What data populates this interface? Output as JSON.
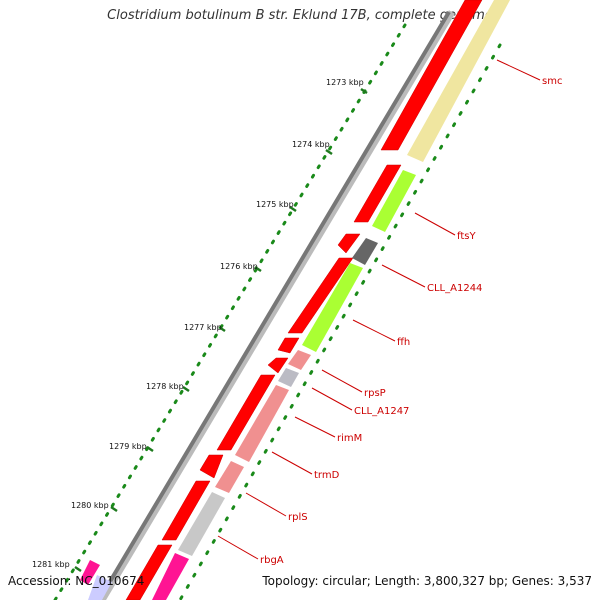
{
  "title": "Clostridium botulinum B str. Eklund 17B, complete genome",
  "footer": {
    "accession": "Accession: NC_010674",
    "summary": "Topology: circular; Length: 3,800,327 bp; Genes: 3,537"
  },
  "colors": {
    "backbone": "#777777",
    "cds": "#ff0000",
    "tick_dot": "#1a8a1a",
    "tick_mark": "#1f7a1f",
    "label": "#cc0000"
  },
  "ticks": [
    "1273 kbp",
    "1274 kbp",
    "1275 kbp",
    "1276 kbp",
    "1277 kbp",
    "1278 kbp",
    "1279 kbp",
    "1280 kbp",
    "1281 kbp"
  ],
  "genes": [
    {
      "name": "smc",
      "color": "#f0e6a0"
    },
    {
      "name": "ftsY",
      "color": "#aaff33"
    },
    {
      "name": "CLL_A1244",
      "color": "#666666"
    },
    {
      "name": "ffh",
      "color": "#aaff33"
    },
    {
      "name": "rpsP",
      "color": "#f09090"
    },
    {
      "name": "CLL_A1247",
      "color": "#bbbbc4"
    },
    {
      "name": "rimM",
      "color": "#f09090"
    },
    {
      "name": "trmD",
      "color": "#f09090"
    },
    {
      "name": "rplS",
      "color": "#c8c8c8"
    },
    {
      "name": "rbgA",
      "color": "#ff1493"
    }
  ]
}
